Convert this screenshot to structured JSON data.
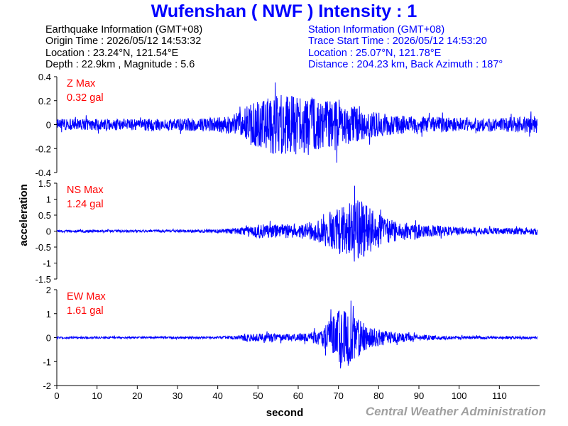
{
  "header": {
    "station": "Wufenshan",
    "code": "NWF",
    "intensity": "1",
    "title": "Wufenshan ( NWF ) Intensity : 1"
  },
  "earthquake_info": {
    "heading": "Earthquake Information  (GMT+08)",
    "origin_time": "Origin Time : 2026/05/12 14:53:32",
    "location": "Location : 23.24°N, 121.54°E",
    "depth_magnitude": "Depth : 22.9km , Magnitude : 5.6"
  },
  "station_info": {
    "heading": "Station Information  (GMT+08)",
    "trace_start": "Trace Start Time : 2026/05/12 14:53:20",
    "location": "Location : 25.07°N, 121.78°E",
    "distance_azimuth": "Distance : 204.23 km, Back Azimuth : 187°"
  },
  "credit": "Central Weather Administration",
  "colors": {
    "trace": "#0000ff",
    "title": "#0000ff",
    "max_label": "#ff0000",
    "credit": "#a0a0a0"
  },
  "chart_data": [
    {
      "type": "line",
      "component": "Z",
      "max_label": "Z Max",
      "max_value": "0.32 gal",
      "peak_gal": 0.32,
      "ylim": [
        -0.4,
        0.4
      ],
      "yticks": [
        0.4,
        0.2,
        0,
        -0.2,
        -0.4
      ],
      "ytick_labels": [
        "0.4",
        "0.2",
        "0",
        "-0.2",
        "-0.4"
      ],
      "xlim": [
        0,
        120
      ],
      "envelope_seconds": [
        0,
        5,
        10,
        20,
        30,
        40,
        45,
        48,
        52,
        55,
        58,
        62,
        66,
        70,
        75,
        80,
        85,
        90,
        100,
        110,
        119
      ],
      "envelope_gal": [
        0.05,
        0.05,
        0.05,
        0.05,
        0.05,
        0.06,
        0.1,
        0.17,
        0.22,
        0.26,
        0.24,
        0.23,
        0.21,
        0.2,
        0.14,
        0.1,
        0.08,
        0.07,
        0.06,
        0.06,
        0.07
      ]
    },
    {
      "type": "line",
      "component": "NS",
      "max_label": "NS Max",
      "max_value": "1.24 gal",
      "peak_gal": 1.24,
      "ylim": [
        -1.5,
        1.5
      ],
      "yticks": [
        1.5,
        1,
        0.5,
        0,
        -0.5,
        -1,
        -1.5
      ],
      "ytick_labels": [
        "1.5",
        "1",
        "0.5",
        "0",
        "-0.5",
        "-1",
        "-1.5"
      ],
      "xlim": [
        0,
        120
      ],
      "envelope_seconds": [
        0,
        10,
        20,
        30,
        40,
        45,
        48,
        55,
        60,
        65,
        68,
        72,
        75,
        78,
        82,
        85,
        90,
        100,
        110,
        119
      ],
      "envelope_gal": [
        0.04,
        0.04,
        0.04,
        0.04,
        0.05,
        0.1,
        0.2,
        0.22,
        0.22,
        0.35,
        0.55,
        0.85,
        1.05,
        0.7,
        0.4,
        0.3,
        0.22,
        0.12,
        0.1,
        0.12
      ]
    },
    {
      "type": "line",
      "component": "EW",
      "max_label": "EW Max",
      "max_value": "1.61 gal",
      "peak_gal": 1.61,
      "ylim": [
        -2,
        2
      ],
      "yticks": [
        2,
        1,
        0,
        -1,
        -2
      ],
      "ytick_labels": [
        "2",
        "1",
        "0",
        "-1",
        "-2"
      ],
      "xlim": [
        0,
        120
      ],
      "envelope_seconds": [
        0,
        10,
        20,
        30,
        40,
        45,
        48,
        55,
        62,
        66,
        69,
        71,
        74,
        78,
        83,
        88,
        95,
        105,
        119
      ],
      "envelope_gal": [
        0.04,
        0.04,
        0.04,
        0.04,
        0.05,
        0.08,
        0.2,
        0.15,
        0.18,
        0.35,
        0.95,
        1.4,
        0.95,
        0.45,
        0.25,
        0.15,
        0.08,
        0.06,
        0.06
      ]
    }
  ],
  "x_axis": {
    "label": "second",
    "ticks": [
      0,
      10,
      20,
      30,
      40,
      50,
      60,
      70,
      80,
      90,
      100,
      110
    ],
    "tick_labels": [
      "0",
      "10",
      "20",
      "30",
      "40",
      "50",
      "60",
      "70",
      "80",
      "90",
      "100",
      "110"
    ]
  },
  "y_axis": {
    "label": "acceleration"
  }
}
